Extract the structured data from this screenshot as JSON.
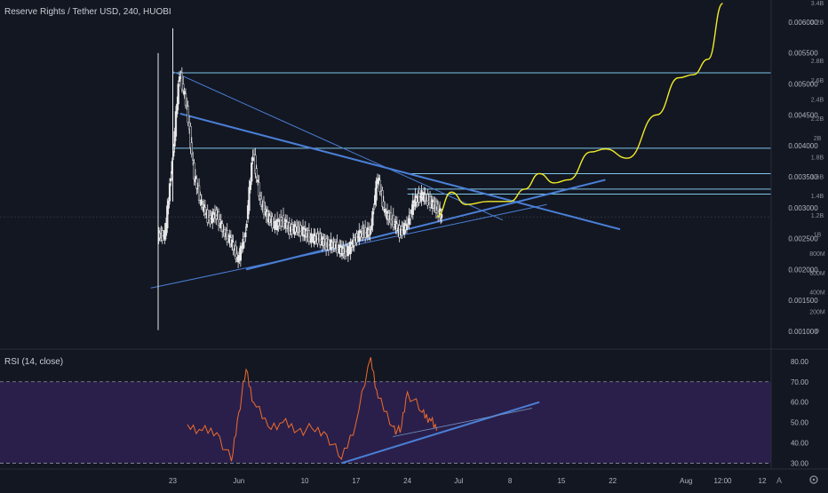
{
  "header": {
    "symbol_title": "Reserve Rights / Tether USD, 240, HUOBI"
  },
  "price_axis": {
    "labels": [
      "0.006000",
      "0.005500",
      "0.005000",
      "0.004500",
      "0.004000",
      "0.003500",
      "0.003000",
      "0.002500",
      "0.002000",
      "0.001500",
      "0.001000"
    ]
  },
  "volume_axis": {
    "labels": [
      "3.4B",
      "3.2B",
      "2.8B",
      "2.6B",
      "2.4B",
      "2.2B",
      "2B",
      "1.8B",
      "1.6B",
      "1.4B",
      "1.2B",
      "1B",
      "800M",
      "600M",
      "400M",
      "200M",
      "0"
    ]
  },
  "rsi": {
    "label": "RSI (14, close)",
    "axis_labels": [
      "80.00",
      "70.00",
      "60.00",
      "50.00",
      "40.00",
      "30.00"
    ]
  },
  "time_axis": {
    "labels": [
      "23",
      "Jun",
      "10",
      "17",
      "24",
      "Jul",
      "8",
      "15",
      "22",
      "Aug",
      "12:00",
      "12"
    ]
  },
  "corner": {
    "auto_label": "A",
    "settings_icon": "gear-icon"
  },
  "colors": {
    "background": "#131722",
    "candles": "#e9e9ea",
    "trendline": "#4a7fd6",
    "horizontal_levels": "#7ec6e8",
    "projection": "#f2ec27",
    "rsi_line": "#ef6c2c",
    "rsi_band": "#2a1f4a"
  },
  "chart_data": {
    "type": "line",
    "title": "Reserve Rights / Tether USD, 240, HUOBI",
    "xlabel": "",
    "ylabel": "",
    "ylim": [
      0.0009,
      0.0063
    ],
    "rsi_ylim": [
      28,
      83
    ],
    "price_series": [
      {
        "x": "2020-05-21",
        "y": 0.00255
      },
      {
        "x": "2020-05-22",
        "y": 0.00375
      },
      {
        "x": "2020-05-23",
        "y": 0.0052
      },
      {
        "x": "2020-05-24",
        "y": 0.0046
      },
      {
        "x": "2020-05-25",
        "y": 0.0035
      },
      {
        "x": "2020-05-26",
        "y": 0.00305
      },
      {
        "x": "2020-05-27",
        "y": 0.0028
      },
      {
        "x": "2020-05-28",
        "y": 0.0029
      },
      {
        "x": "2020-05-29",
        "y": 0.0026
      },
      {
        "x": "2020-05-30",
        "y": 0.00245
      },
      {
        "x": "2020-05-31",
        "y": 0.00215
      },
      {
        "x": "2020-06-01",
        "y": 0.0026
      },
      {
        "x": "2020-06-02",
        "y": 0.0039
      },
      {
        "x": "2020-06-03",
        "y": 0.0031
      },
      {
        "x": "2020-06-04",
        "y": 0.00285
      },
      {
        "x": "2020-06-05",
        "y": 0.0027
      },
      {
        "x": "2020-06-06",
        "y": 0.0028
      },
      {
        "x": "2020-06-07",
        "y": 0.00265
      },
      {
        "x": "2020-06-08",
        "y": 0.00265
      },
      {
        "x": "2020-06-09",
        "y": 0.0026
      },
      {
        "x": "2020-06-10",
        "y": 0.0025
      },
      {
        "x": "2020-06-11",
        "y": 0.0025
      },
      {
        "x": "2020-06-12",
        "y": 0.0024
      },
      {
        "x": "2020-06-13",
        "y": 0.0024
      },
      {
        "x": "2020-06-14",
        "y": 0.0023
      },
      {
        "x": "2020-06-15",
        "y": 0.0023
      },
      {
        "x": "2020-06-16",
        "y": 0.0025
      },
      {
        "x": "2020-06-17",
        "y": 0.0026
      },
      {
        "x": "2020-06-18",
        "y": 0.0026
      },
      {
        "x": "2020-06-19",
        "y": 0.0035
      },
      {
        "x": "2020-06-20",
        "y": 0.0029
      },
      {
        "x": "2020-06-21",
        "y": 0.0028
      },
      {
        "x": "2020-06-22",
        "y": 0.0026
      },
      {
        "x": "2020-06-23",
        "y": 0.0027
      },
      {
        "x": "2020-06-24",
        "y": 0.0031
      },
      {
        "x": "2020-06-25",
        "y": 0.0032
      },
      {
        "x": "2020-06-26",
        "y": 0.0031
      },
      {
        "x": "2020-06-27",
        "y": 0.003
      },
      {
        "x": "2020-06-28",
        "y": 0.00285
      }
    ],
    "projection": [
      {
        "x": "2020-06-28",
        "y": 0.00285
      },
      {
        "x": "2020-06-30",
        "y": 0.00325
      },
      {
        "x": "2020-07-02",
        "y": 0.00305
      },
      {
        "x": "2020-07-05",
        "y": 0.0031
      },
      {
        "x": "2020-07-08",
        "y": 0.0031
      },
      {
        "x": "2020-07-10",
        "y": 0.0033
      },
      {
        "x": "2020-07-12",
        "y": 0.00355
      },
      {
        "x": "2020-07-14",
        "y": 0.0034
      },
      {
        "x": "2020-07-16",
        "y": 0.00345
      },
      {
        "x": "2020-07-19",
        "y": 0.0039
      },
      {
        "x": "2020-07-21",
        "y": 0.00395
      },
      {
        "x": "2020-07-24",
        "y": 0.0038
      },
      {
        "x": "2020-07-28",
        "y": 0.0045
      },
      {
        "x": "2020-07-31",
        "y": 0.0051
      },
      {
        "x": "2020-08-02",
        "y": 0.00515
      },
      {
        "x": "2020-08-04",
        "y": 0.0054
      },
      {
        "x": "2020-08-06",
        "y": 0.0063
      }
    ],
    "horizontal_levels": [
      0.00518,
      0.00396,
      0.00355,
      0.0033,
      0.00322
    ],
    "trendlines": [
      {
        "from": {
          "x": "2020-05-24",
          "y": 0.00452
        },
        "to": {
          "x": "2020-07-23",
          "y": 0.00265
        }
      },
      {
        "from": {
          "x": "2020-05-23",
          "y": 0.0052
        },
        "to": {
          "x": "2020-07-07",
          "y": 0.0028
        }
      },
      {
        "from": {
          "x": "2020-06-02",
          "y": 0.002
        },
        "to": {
          "x": "2020-07-21",
          "y": 0.00345
        }
      },
      {
        "from": {
          "x": "2020-05-20",
          "y": 0.0017
        },
        "to": {
          "x": "2020-07-13",
          "y": 0.00305
        }
      }
    ],
    "rsi_series": [
      {
        "x": "2020-05-25",
        "y": 49
      },
      {
        "x": "2020-05-27",
        "y": 46
      },
      {
        "x": "2020-05-29",
        "y": 45
      },
      {
        "x": "2020-05-31",
        "y": 31
      },
      {
        "x": "2020-06-01",
        "y": 55
      },
      {
        "x": "2020-06-02",
        "y": 76
      },
      {
        "x": "2020-06-03",
        "y": 60
      },
      {
        "x": "2020-06-05",
        "y": 48
      },
      {
        "x": "2020-06-07",
        "y": 50
      },
      {
        "x": "2020-06-09",
        "y": 46
      },
      {
        "x": "2020-06-11",
        "y": 47
      },
      {
        "x": "2020-06-13",
        "y": 44
      },
      {
        "x": "2020-06-15",
        "y": 32
      },
      {
        "x": "2020-06-17",
        "y": 50
      },
      {
        "x": "2020-06-19",
        "y": 82
      },
      {
        "x": "2020-06-20",
        "y": 62
      },
      {
        "x": "2020-06-22",
        "y": 48
      },
      {
        "x": "2020-06-23",
        "y": 45
      },
      {
        "x": "2020-06-24",
        "y": 65
      },
      {
        "x": "2020-06-26",
        "y": 55
      },
      {
        "x": "2020-06-27",
        "y": 52
      },
      {
        "x": "2020-06-28",
        "y": 46
      }
    ],
    "rsi_trendlines": [
      {
        "from": {
          "x": "2020-06-15",
          "y": 30
        },
        "to": {
          "x": "2020-07-12",
          "y": 60
        }
      },
      {
        "from": {
          "x": "2020-06-22",
          "y": 43
        },
        "to": {
          "x": "2020-07-11",
          "y": 57
        }
      }
    ],
    "rsi_band": [
      30,
      70
    ],
    "grid": false,
    "legend": "top-left"
  }
}
